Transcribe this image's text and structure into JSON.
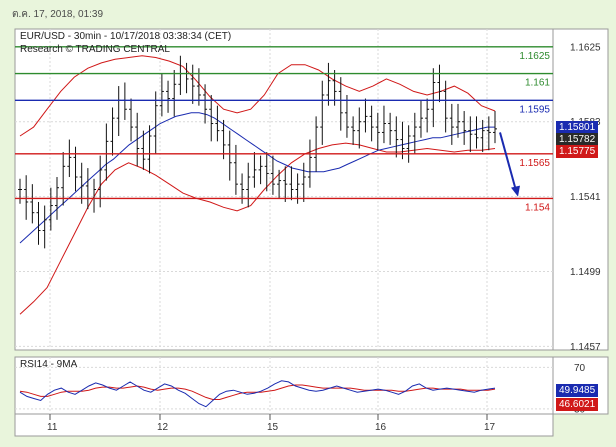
{
  "timestamp": "ต.ค. 17, 2018, 01:39",
  "chart_data": [
    {
      "type": "candlestick",
      "title": "EUR/USD - 30min - 10/17/2018 03:38:34 (CET)",
      "subtitle": "Research © TRADING CENTRAL",
      "ylim": [
        1.1455,
        1.1635
      ],
      "y_ticks": [
        1.1625,
        1.1583,
        1.1541,
        1.1499,
        1.1457
      ],
      "y_tick_labels": [
        "1.1625",
        "1.1583",
        "1.1541",
        "1.1499",
        "1.1457"
      ],
      "x_ticks": [
        {
          "label": "11",
          "day": 11
        },
        {
          "label": "12",
          "day": 12
        },
        {
          "label": "15",
          "day": 15
        },
        {
          "label": "16",
          "day": 16
        },
        {
          "label": "17",
          "day": 17
        }
      ],
      "levels": [
        {
          "value": 1.1625,
          "label": "1.1625",
          "color": "#2e8b2e"
        },
        {
          "value": 1.161,
          "label": "1.161",
          "color": "#2e8b2e"
        },
        {
          "value": 1.1595,
          "label": "1.1595",
          "color": "#1a2bb0"
        },
        {
          "value": 1.1565,
          "label": "1.1565",
          "color": "#d01818"
        },
        {
          "value": 1.154,
          "label": "1.154",
          "color": "#d01818"
        }
      ],
      "price_tags": [
        {
          "value": 1.15801,
          "label": "1.15801",
          "color": "#1a2bb0"
        },
        {
          "value": 1.15782,
          "label": "1.15782",
          "color": "#2a2a2a"
        },
        {
          "value": 1.15775,
          "label": "1.15775",
          "color": "#d01818"
        }
      ],
      "forecast_arrow": {
        "from": 1.1577,
        "to": 1.1541
      },
      "close_path": [
        1.1545,
        1.1538,
        1.1532,
        1.1522,
        1.1528,
        1.1536,
        1.1546,
        1.1558,
        1.1563,
        1.1552,
        1.1547,
        1.154,
        1.1545,
        1.1556,
        1.1572,
        1.1585,
        1.1595,
        1.159,
        1.158,
        1.1568,
        1.1562,
        1.1575,
        1.1592,
        1.16,
        1.1596,
        1.1604,
        1.161,
        1.1607,
        1.1603,
        1.1598,
        1.159,
        1.1582,
        1.1578,
        1.157,
        1.156,
        1.1548,
        1.1545,
        1.1552,
        1.1556,
        1.1558,
        1.1554,
        1.1548,
        1.155,
        1.1548,
        1.1545,
        1.1548,
        1.1552,
        1.1563,
        1.158,
        1.1598,
        1.1606,
        1.16,
        1.1588,
        1.158,
        1.1578,
        1.1583,
        1.1586,
        1.158,
        1.1577,
        1.1582,
        1.1578,
        1.1573,
        1.1568,
        1.1575,
        1.158,
        1.1585,
        1.159,
        1.1605,
        1.16,
        1.1585,
        1.158,
        1.1583,
        1.1578,
        1.1576,
        1.1574,
        1.1578,
        1.1577,
        1.1579
      ],
      "ma_values": [
        1.1515,
        1.1519,
        1.1523,
        1.1527,
        1.1531,
        1.1535,
        1.1539,
        1.1543,
        1.1547,
        1.1551,
        1.1555,
        1.1559,
        1.1562,
        1.1566,
        1.157,
        1.1573,
        1.1576,
        1.1579,
        1.1582,
        1.1584,
        1.1586,
        1.1587,
        1.1588,
        1.1588,
        1.1587,
        1.1585,
        1.1582,
        1.1579,
        1.1576,
        1.1573,
        1.157,
        1.1567,
        1.1564,
        1.1561,
        1.1559,
        1.1557,
        1.1556,
        1.1555,
        1.1555,
        1.1555,
        1.1556,
        1.1557,
        1.1559,
        1.1561,
        1.1563,
        1.1565,
        1.1567,
        1.1568,
        1.1569,
        1.157,
        1.1571,
        1.1572,
        1.1573,
        1.1574,
        1.1574,
        1.1575,
        1.1576,
        1.1577,
        1.1578,
        1.1579,
        1.158,
        1.158
      ],
      "band_upper": [
        1.1575,
        1.158,
        1.159,
        1.16,
        1.1608,
        1.1613,
        1.1616,
        1.1618,
        1.1619,
        1.162,
        1.1619,
        1.1617,
        1.1614,
        1.1606,
        1.1597,
        1.159,
        1.1588,
        1.159,
        1.1598,
        1.161,
        1.1615,
        1.1615,
        1.1612,
        1.1607,
        1.1603,
        1.16,
        1.1603,
        1.1607,
        1.1604,
        1.16,
        1.1598,
        1.16,
        1.1603,
        1.1599,
        1.1592,
        1.1589
      ],
      "band_lower": [
        1.1475,
        1.1482,
        1.149,
        1.1505,
        1.152,
        1.1535,
        1.1548,
        1.1556,
        1.156,
        1.1557,
        1.1553,
        1.1548,
        1.1543,
        1.154,
        1.1538,
        1.1535,
        1.1533,
        1.1536,
        1.1545,
        1.1553,
        1.156,
        1.1565,
        1.1568,
        1.157,
        1.1571,
        1.157,
        1.1568,
        1.1566,
        1.1566,
        1.1567,
        1.1568,
        1.1567,
        1.1566,
        1.1567,
        1.1567,
        1.1568
      ]
    },
    {
      "type": "line",
      "title": "RSI14 - 9MA",
      "ylim": [
        25,
        80
      ],
      "y_ticks": [
        70,
        30
      ],
      "y_tick_labels": [
        "70",
        "30"
      ],
      "rsi_tags": [
        {
          "value": 49.9485,
          "label": "49.9485",
          "color": "#1a2bb0"
        },
        {
          "value": 46.6021,
          "label": "46.6021",
          "color": "#d01818"
        }
      ],
      "rsi_values": [
        46,
        42,
        40,
        38,
        44,
        48,
        50,
        46,
        44,
        48,
        52,
        55,
        53,
        50,
        48,
        52,
        56,
        52,
        48,
        46,
        50,
        54,
        52,
        48,
        45,
        40,
        35,
        32,
        38,
        44,
        47,
        48,
        46,
        44,
        45,
        47,
        50,
        54,
        57,
        56,
        52,
        50,
        48,
        47,
        48,
        50,
        52,
        50,
        48,
        46,
        47,
        48,
        49,
        48,
        46,
        44,
        47,
        52,
        54,
        50,
        48,
        49,
        50,
        49,
        48,
        47,
        46,
        48,
        49,
        50
      ],
      "rsi_ma_values": [
        47,
        46,
        44,
        42,
        42,
        44,
        46,
        47,
        47,
        47,
        48,
        50,
        51,
        51,
        50,
        50,
        51,
        52,
        51,
        49,
        48,
        49,
        50,
        50,
        49,
        47,
        44,
        41,
        39,
        39,
        41,
        43,
        45,
        46,
        46,
        46,
        47,
        48,
        50,
        52,
        53,
        53,
        52,
        51,
        50,
        50,
        50,
        50,
        50,
        49,
        48,
        48,
        48,
        48,
        48,
        47,
        47,
        48,
        49,
        50,
        50,
        49,
        49,
        49,
        49,
        48,
        48,
        48,
        48,
        49
      ]
    }
  ]
}
